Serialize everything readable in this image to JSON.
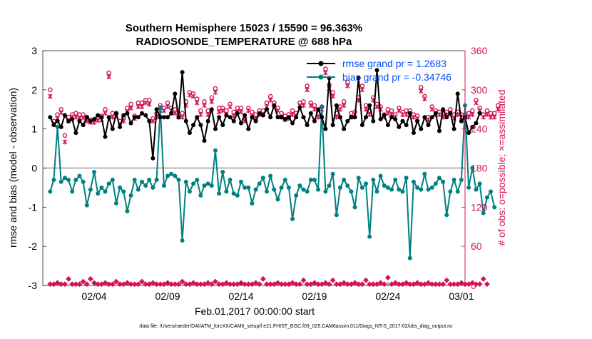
{
  "chart_data": {
    "type": "line",
    "title": "Southern Hemisphere 15023 / 15590 = 96.363%",
    "subtitle": "RADIOSONDE_TEMPERATURE @ 688 hPa",
    "xlabel": "Feb.01,2017 00:00:00 start",
    "ylabel": "rmse and bias (model - observation)",
    "y2label": "# of obs: o=possible; ×=assimilated",
    "footer": "data file: /Users/raeder/DAI/ATM_forcXX/CAM6_setup/f.e21.FHIST_BGC.f09_025.CAM6assim.011/Diags_NTrS_2017-02/obs_diag_output.nc",
    "x_range_days": [
      -0.5,
      28.25
    ],
    "ylim": [
      -3,
      3
    ],
    "y2lim": [
      0,
      360
    ],
    "x_ticks": [
      {
        "day": 3,
        "label": "02/04"
      },
      {
        "day": 8,
        "label": "02/09"
      },
      {
        "day": 13,
        "label": "02/14"
      },
      {
        "day": 18,
        "label": "02/19"
      },
      {
        "day": 23,
        "label": "02/24"
      },
      {
        "day": 28,
        "label": "03/01"
      }
    ],
    "y_ticks": [
      "3",
      "2",
      "1",
      "0",
      "-1",
      "-2",
      "-3"
    ],
    "y2_ticks": [
      "360",
      "300",
      "240",
      "180",
      "120",
      "60",
      "0"
    ],
    "x_step_days": 0.25,
    "legend": [
      {
        "label": "rmse grand pr = 1.2683",
        "color": "#000000"
      },
      {
        "label": "bias grand pr = -0.34746",
        "color": "#008080"
      }
    ],
    "colors": {
      "rmse": "#000000",
      "bias": "#008080",
      "obs": "#d4145a",
      "zero_line": "#b4b4b4",
      "legend_text": "#0050ff"
    },
    "series": [
      {
        "name": "rmse",
        "values": [
          1.3,
          1.1,
          1.2,
          1.05,
          1.35,
          1.2,
          1.25,
          0.9,
          1.2,
          1.1,
          1.3,
          1.2,
          1.25,
          1.35,
          1.3,
          0.8,
          1.3,
          1.0,
          1.4,
          1.05,
          1.35,
          1.4,
          1.15,
          1.3,
          1.3,
          1.4,
          1.35,
          1.2,
          0.25,
          1.5,
          1.3,
          1.3,
          1.3,
          1.4,
          1.9,
          1.3,
          2.45,
          1.2,
          0.9,
          1.1,
          1.3,
          1.1,
          0.7,
          1.2,
          1.5,
          1.0,
          1.3,
          1.1,
          1.35,
          1.3,
          1.2,
          1.4,
          1.15,
          1.35,
          1.0,
          1.3,
          1.2,
          1.4,
          1.35,
          1.5,
          1.3,
          1.6,
          1.3,
          1.3,
          1.25,
          1.3,
          1.15,
          1.3,
          1.55,
          1.3,
          1.1,
          1.4,
          1.2,
          1.5,
          1.3,
          1.0,
          2.3,
          1.1,
          1.6,
          1.3,
          1.0,
          1.2,
          1.3,
          1.3,
          2.3,
          1.1,
          1.3,
          1.6,
          1.2,
          2.5,
          1.25,
          1.35,
          1.1,
          1.3,
          1.25,
          1.05,
          1.2,
          1.1,
          1.4,
          0.9,
          1.2,
          1.0,
          1.3,
          1.1,
          1.3,
          1.4,
          0.95,
          1.5,
          1.3,
          1.4,
          1.0,
          1.9,
          1.2,
          1.3,
          0.9,
          1.05,
          1.15,
          1.4
        ],
        "x_start": 0,
        "marker": "circle"
      },
      {
        "name": "bias",
        "values": [
          -0.6,
          -0.3,
          1.05,
          -0.35,
          -0.25,
          -0.3,
          -0.6,
          -0.3,
          -0.2,
          -0.35,
          -0.95,
          -0.55,
          -0.1,
          -0.65,
          -0.5,
          -0.6,
          -0.4,
          -0.3,
          -0.9,
          -0.5,
          -0.6,
          -1.1,
          -0.7,
          -0.3,
          -0.55,
          -0.35,
          -0.45,
          -0.3,
          -0.5,
          -0.3,
          1.55,
          -0.45,
          -0.2,
          -0.15,
          -0.2,
          -0.3,
          -1.85,
          -0.35,
          -0.6,
          -0.4,
          -0.3,
          -0.7,
          -0.45,
          -0.4,
          -0.45,
          0.45,
          -0.65,
          -0.1,
          -0.6,
          -0.3,
          -0.65,
          -0.7,
          -0.35,
          -0.5,
          -0.5,
          -0.9,
          -0.55,
          -0.4,
          -0.25,
          -0.6,
          -0.2,
          -0.55,
          -0.8,
          -0.5,
          -0.3,
          -0.5,
          -1.3,
          -0.7,
          -0.45,
          -0.55,
          -0.6,
          -0.3,
          -0.3,
          -0.55,
          1.55,
          -0.6,
          -0.45,
          -0.15,
          -1.2,
          -0.5,
          -0.3,
          -0.45,
          -0.6,
          -1.0,
          -0.25,
          -0.5,
          -0.4,
          -1.75,
          -0.3,
          -0.6,
          -0.2,
          -0.45,
          -0.5,
          -0.55,
          -0.3,
          -0.55,
          -0.6,
          -0.25,
          -2.3,
          -0.35,
          -0.5,
          -0.55,
          -0.15,
          -0.55,
          -0.5,
          -0.4,
          -0.25,
          -0.35,
          -1.2,
          -0.6,
          -0.3,
          -0.6,
          -0.3,
          1.6,
          -0.5,
          0.0,
          -0.55,
          -0.4,
          -1.15,
          -0.75,
          -0.6,
          -1.0
        ],
        "x_start": 0,
        "marker": "circle"
      },
      {
        "name": "possible_obs",
        "values": [
          300,
          252,
          262,
          270,
          230,
          258,
          262,
          264,
          262,
          262,
          258,
          254,
          254,
          258,
          260,
          270,
          326,
          264,
          264,
          252,
          258,
          272,
          278,
          260,
          280,
          280,
          284,
          284,
          256,
          264,
          276,
          272,
          280,
          272,
          270,
          262,
          264,
          282,
          296,
          294,
          286,
          268,
          282,
          268,
          288,
          302,
          272,
          272,
          268,
          278,
          266,
          272,
          272,
          256,
          272,
          266,
          262,
          268,
          268,
          280,
          290,
          280,
          272,
          264,
          260,
          262,
          268,
          264,
          280,
          282,
          306,
          280,
          276,
          264,
          274,
          332,
          308,
          296,
          264,
          274,
          282,
          312,
          264,
          266,
          288,
          306,
          276,
          268,
          288,
          278,
          274,
          262,
          270,
          268,
          262,
          272,
          266,
          268,
          268,
          262,
          260,
          304,
          290,
          258,
          274,
          268,
          266,
          264,
          266,
          270,
          262,
          266,
          262,
          262,
          264,
          268,
          284,
          272,
          262,
          268,
          264,
          264,
          276
        ],
        "x_start": 0,
        "marker": "o"
      },
      {
        "name": "assimilated_obs",
        "values": [
          290,
          248,
          256,
          265,
          220,
          252,
          258,
          258,
          256,
          257,
          252,
          250,
          250,
          253,
          254,
          264,
          320,
          258,
          260,
          245,
          252,
          266,
          272,
          256,
          274,
          274,
          280,
          278,
          252,
          258,
          268,
          268,
          274,
          268,
          264,
          258,
          258,
          276,
          292,
          290,
          280,
          262,
          276,
          262,
          282,
          296,
          266,
          268,
          262,
          274,
          260,
          266,
          266,
          252,
          268,
          260,
          256,
          262,
          262,
          274,
          284,
          276,
          268,
          258,
          254,
          256,
          262,
          260,
          276,
          276,
          300,
          276,
          270,
          258,
          270,
          326,
          302,
          290,
          258,
          270,
          276,
          306,
          258,
          262,
          284,
          300,
          270,
          262,
          284,
          274,
          270,
          258,
          264,
          262,
          258,
          268,
          262,
          262,
          262,
          258,
          256,
          298,
          286,
          254,
          270,
          262,
          262,
          258,
          262,
          264,
          256,
          262,
          258,
          258,
          258,
          262,
          280,
          268,
          258,
          262,
          258,
          258,
          270
        ],
        "x_start": 0,
        "marker": "x"
      },
      {
        "name": "possible_obs_sparse",
        "values": [
          2,
          2,
          4,
          2,
          2,
          10,
          2,
          2,
          2,
          6,
          2,
          10,
          4,
          2,
          2,
          4,
          2,
          2,
          6,
          2,
          2,
          4,
          2,
          2,
          2,
          6,
          2,
          2,
          4,
          2,
          2,
          2,
          4,
          2,
          2,
          2,
          6,
          2,
          2,
          4,
          2,
          2,
          2,
          4,
          2,
          6,
          2,
          2,
          4,
          2,
          2,
          2,
          4,
          2,
          2,
          2,
          4,
          2,
          10,
          2,
          2,
          2,
          4,
          2,
          2,
          2,
          4,
          2,
          2,
          8,
          2,
          2,
          4,
          2,
          2,
          4,
          2,
          8,
          2,
          2,
          4,
          2,
          2,
          4,
          2,
          2,
          8,
          2,
          2,
          2,
          4,
          2,
          12,
          2,
          4,
          2,
          2,
          4,
          2,
          2,
          4,
          2,
          2,
          4,
          2,
          2,
          2,
          2,
          8,
          2,
          2,
          2,
          4,
          2,
          2,
          4,
          2,
          2,
          10,
          2
        ],
        "x_start": 0,
        "marker": "diamond"
      }
    ]
  }
}
